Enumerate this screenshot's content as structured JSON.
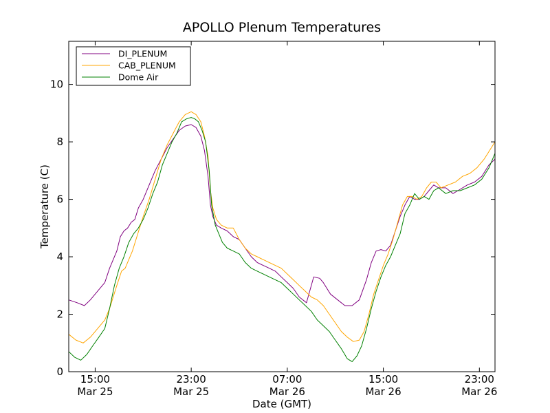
{
  "chart_data": {
    "type": "line",
    "title": "APOLLO Plenum Temperatures",
    "xlabel": "Date (GMT)",
    "ylabel": "Temperature (C)",
    "xlim": [
      12.8,
      48.3
    ],
    "ylim": [
      0,
      11.5
    ],
    "yticks": [
      0,
      2,
      4,
      6,
      8,
      10
    ],
    "xticks": [
      {
        "value": 15,
        "time": "15:00",
        "date": "Mar 25"
      },
      {
        "value": 23,
        "time": "23:00",
        "date": "Mar 25"
      },
      {
        "value": 31,
        "time": "07:00",
        "date": "Mar 26"
      },
      {
        "value": 39,
        "time": "15:00",
        "date": "Mar 26"
      },
      {
        "value": 47,
        "time": "23:00",
        "date": "Mar 26"
      }
    ],
    "grid": false,
    "legend_position": "top-left",
    "series": [
      {
        "name": "DI_PLENUM",
        "color": "#800080",
        "x": [
          12.8,
          13.5,
          14.1,
          14.6,
          15.2,
          15.8,
          16.2,
          16.8,
          17.1,
          17.4,
          17.7,
          18.0,
          18.3,
          18.6,
          19.0,
          19.5,
          20.0,
          20.5,
          21.0,
          21.5,
          22.0,
          22.5,
          23.0,
          23.4,
          23.8,
          24.1,
          24.4,
          24.6,
          24.8,
          25.1,
          25.5,
          26.0,
          26.5,
          27.0,
          27.5,
          28.0,
          28.5,
          29.0,
          29.5,
          30.0,
          30.5,
          31.0,
          31.5,
          32.0,
          32.6,
          33.2,
          33.7,
          34.0,
          34.3,
          34.6,
          35.2,
          35.8,
          36.4,
          37.0,
          37.6,
          38.0,
          38.4,
          38.8,
          39.2,
          39.6,
          40.0,
          40.4,
          40.8,
          41.2,
          41.6,
          42.0,
          42.4,
          42.8,
          43.2,
          43.6,
          44.2,
          44.8,
          45.4,
          46.0,
          46.6,
          47.2,
          47.8,
          48.3
        ],
        "y": [
          2.5,
          2.4,
          2.3,
          2.5,
          2.8,
          3.1,
          3.6,
          4.2,
          4.7,
          4.9,
          5.0,
          5.2,
          5.3,
          5.7,
          6.0,
          6.5,
          7.0,
          7.4,
          7.8,
          8.1,
          8.4,
          8.55,
          8.6,
          8.5,
          8.2,
          7.7,
          6.8,
          5.8,
          5.4,
          5.1,
          5.0,
          4.9,
          4.7,
          4.6,
          4.3,
          4.0,
          3.8,
          3.7,
          3.6,
          3.5,
          3.3,
          3.1,
          2.9,
          2.6,
          2.4,
          3.3,
          3.25,
          3.1,
          2.9,
          2.7,
          2.5,
          2.3,
          2.3,
          2.5,
          3.2,
          3.8,
          4.2,
          4.25,
          4.2,
          4.4,
          4.9,
          5.4,
          5.8,
          6.1,
          6.0,
          6.0,
          6.1,
          6.3,
          6.5,
          6.4,
          6.4,
          6.2,
          6.35,
          6.5,
          6.6,
          6.8,
          7.2,
          7.4
        ]
      },
      {
        "name": "CAB_PLENUM",
        "color": "#ffa500",
        "x": [
          12.8,
          13.4,
          14.0,
          14.6,
          15.2,
          15.8,
          16.2,
          16.8,
          17.2,
          17.5,
          17.8,
          18.1,
          18.4,
          18.7,
          19.0,
          19.5,
          20.0,
          20.5,
          21.0,
          21.5,
          22.0,
          22.5,
          23.0,
          23.4,
          23.8,
          24.1,
          24.4,
          24.6,
          24.8,
          25.1,
          25.5,
          26.0,
          26.5,
          27.0,
          27.5,
          28.0,
          28.5,
          29.0,
          29.5,
          30.0,
          30.5,
          31.0,
          31.5,
          32.0,
          32.5,
          33.0,
          33.5,
          34.0,
          34.5,
          35.0,
          35.5,
          36.0,
          36.5,
          37.0,
          37.4,
          37.8,
          38.2,
          38.6,
          39.0,
          39.4,
          39.8,
          40.2,
          40.6,
          41.0,
          41.4,
          41.8,
          42.2,
          42.6,
          43.0,
          43.4,
          43.8,
          44.4,
          45.0,
          45.6,
          46.2,
          46.8,
          47.4,
          48.0,
          48.3
        ],
        "y": [
          1.3,
          1.1,
          1.0,
          1.2,
          1.5,
          1.8,
          2.2,
          3.0,
          3.5,
          3.6,
          3.9,
          4.2,
          4.6,
          5.0,
          5.4,
          6.0,
          6.7,
          7.4,
          7.9,
          8.3,
          8.7,
          8.95,
          9.05,
          8.95,
          8.7,
          8.2,
          7.5,
          6.3,
          5.7,
          5.3,
          5.1,
          5.0,
          5.0,
          4.6,
          4.3,
          4.1,
          4.0,
          3.9,
          3.8,
          3.7,
          3.6,
          3.4,
          3.2,
          3.0,
          2.8,
          2.6,
          2.5,
          2.3,
          2.0,
          1.7,
          1.4,
          1.2,
          1.05,
          1.1,
          1.4,
          2.0,
          2.7,
          3.2,
          3.7,
          4.1,
          4.6,
          5.2,
          5.8,
          6.1,
          6.1,
          6.0,
          6.1,
          6.4,
          6.6,
          6.6,
          6.4,
          6.5,
          6.6,
          6.8,
          6.9,
          7.1,
          7.4,
          7.8,
          8.0
        ]
      },
      {
        "name": "Dome Air",
        "color": "#008000",
        "x": [
          12.8,
          13.3,
          13.8,
          14.3,
          14.8,
          15.3,
          15.8,
          16.2,
          16.6,
          17.0,
          17.4,
          17.8,
          18.2,
          18.6,
          19.0,
          19.4,
          19.8,
          20.2,
          20.6,
          21.0,
          21.4,
          21.8,
          22.2,
          22.6,
          23.0,
          23.3,
          23.6,
          23.9,
          24.2,
          24.5,
          24.7,
          25.0,
          25.3,
          25.6,
          26.0,
          26.5,
          27.0,
          27.5,
          28.0,
          28.5,
          29.0,
          29.5,
          30.0,
          30.5,
          31.0,
          31.5,
          32.0,
          32.5,
          33.0,
          33.5,
          34.0,
          34.5,
          35.0,
          35.5,
          36.0,
          36.4,
          36.8,
          37.2,
          37.6,
          38.0,
          38.4,
          38.8,
          39.2,
          39.6,
          40.0,
          40.4,
          40.8,
          41.2,
          41.6,
          42.0,
          42.4,
          42.8,
          43.2,
          43.6,
          44.2,
          44.8,
          45.4,
          46.0,
          46.6,
          47.2,
          47.8,
          48.3
        ],
        "y": [
          0.7,
          0.5,
          0.4,
          0.6,
          0.9,
          1.2,
          1.5,
          2.2,
          3.0,
          3.6,
          4.0,
          4.5,
          4.8,
          5.0,
          5.3,
          5.7,
          6.2,
          6.6,
          7.2,
          7.6,
          8.0,
          8.3,
          8.7,
          8.8,
          8.85,
          8.8,
          8.7,
          8.4,
          8.0,
          7.0,
          5.8,
          5.1,
          4.8,
          4.5,
          4.3,
          4.2,
          4.1,
          3.8,
          3.6,
          3.5,
          3.4,
          3.3,
          3.2,
          3.1,
          2.9,
          2.7,
          2.5,
          2.3,
          2.1,
          1.8,
          1.6,
          1.4,
          1.1,
          0.8,
          0.45,
          0.35,
          0.55,
          0.9,
          1.5,
          2.2,
          2.8,
          3.3,
          3.7,
          4.0,
          4.4,
          4.8,
          5.5,
          5.8,
          6.2,
          6.0,
          6.1,
          6.0,
          6.3,
          6.4,
          6.2,
          6.3,
          6.3,
          6.4,
          6.5,
          6.7,
          7.1,
          7.6
        ]
      }
    ]
  }
}
